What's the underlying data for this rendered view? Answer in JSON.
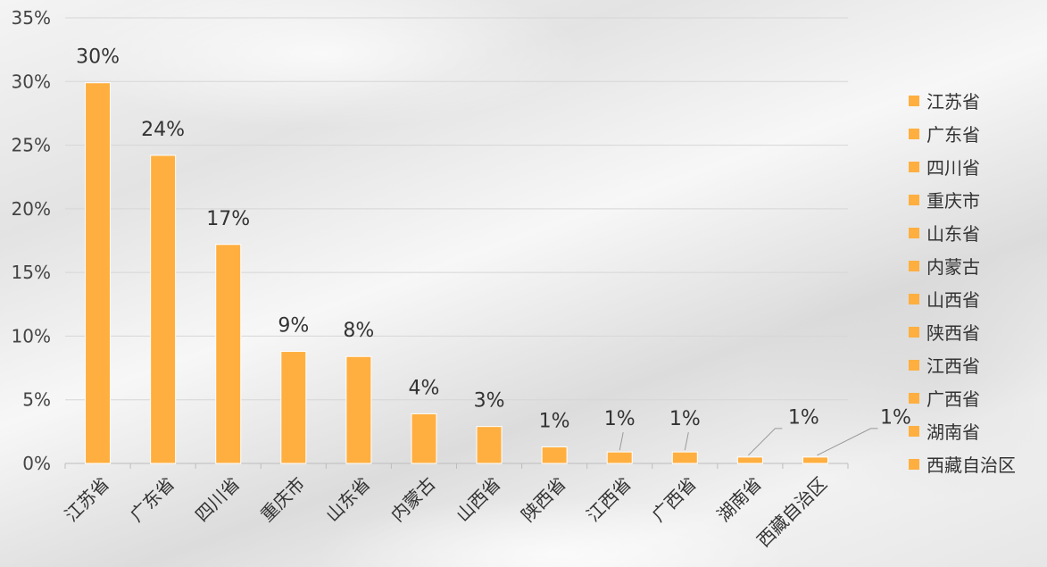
{
  "chart_data": {
    "type": "bar",
    "categories": [
      "江苏省",
      "广东省",
      "四川省",
      "重庆市",
      "山东省",
      "内蒙古",
      "山西省",
      "陕西省",
      "江西省",
      "广西省",
      "湖南省",
      "西藏自治区"
    ],
    "values": [
      29.9,
      24.2,
      17.2,
      8.8,
      8.4,
      3.9,
      2.9,
      1.3,
      0.9,
      0.9,
      0.5,
      0.5
    ],
    "data_labels": [
      "30%",
      "24%",
      "17%",
      "9%",
      "8%",
      "4%",
      "3%",
      "1%",
      "1%",
      "1%",
      "1%",
      "1%"
    ],
    "ylim": [
      0,
      35
    ],
    "yticks": [
      "0%",
      "5%",
      "10%",
      "15%",
      "20%",
      "25%",
      "30%",
      "35%"
    ],
    "bar_color": "#FFAF40",
    "grid": true,
    "legend_position": "right",
    "legend": [
      "江苏省",
      "广东省",
      "四川省",
      "重庆市",
      "山东省",
      "内蒙古",
      "山西省",
      "陕西省",
      "江西省",
      "广西省",
      "湖南省",
      "西藏自治区"
    ]
  }
}
